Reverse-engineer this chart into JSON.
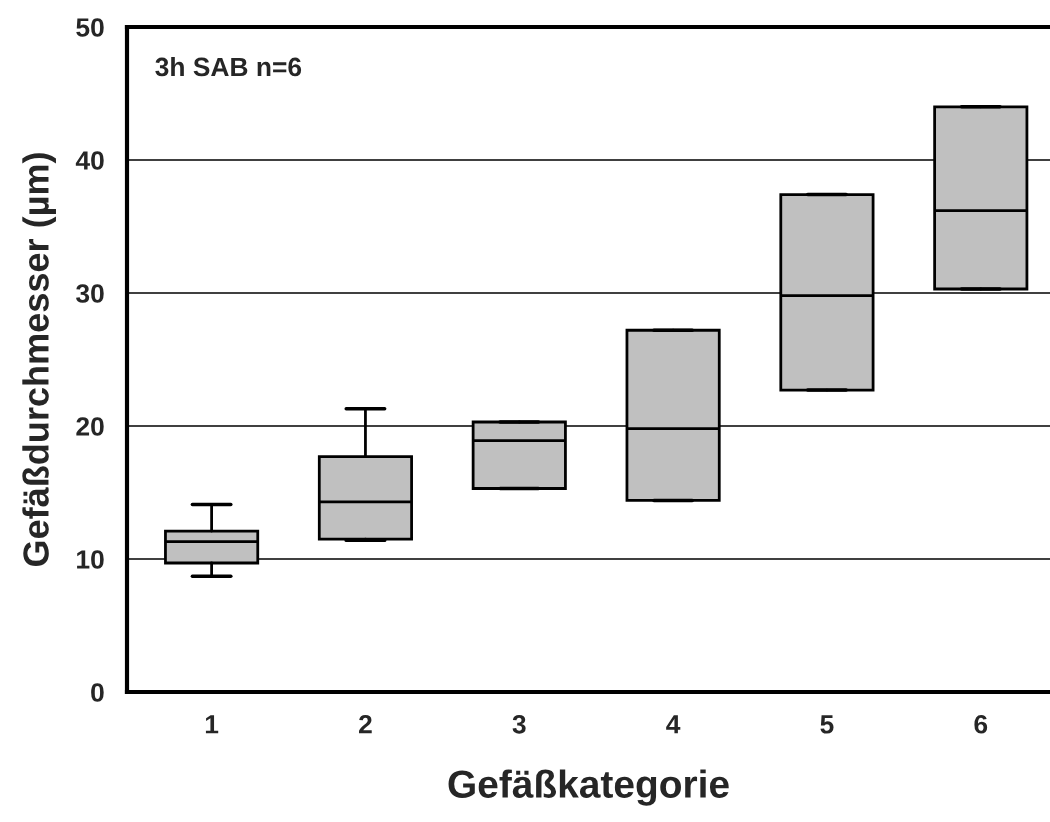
{
  "chart_data": {
    "type": "box",
    "xlabel": "Gefäßkategorie",
    "ylabel": "Gefäßdurchmesser (µm)",
    "annotations": [
      "3h SAB n=6"
    ],
    "categories": [
      "1",
      "2",
      "3",
      "4",
      "5",
      "6"
    ],
    "boxes": [
      {
        "low": 8.7,
        "q1": 9.7,
        "median": 11.3,
        "q3": 12.1,
        "high": 14.1
      },
      {
        "low": 11.4,
        "q1": 11.5,
        "median": 14.3,
        "q3": 17.7,
        "high": 21.3
      },
      {
        "low": 15.3,
        "q1": 15.3,
        "median": 18.9,
        "q3": 20.3,
        "high": 20.3
      },
      {
        "low": 14.4,
        "q1": 14.4,
        "median": 19.8,
        "q3": 27.2,
        "high": 27.2
      },
      {
        "low": 22.7,
        "q1": 22.7,
        "median": 29.8,
        "q3": 37.4,
        "high": 37.4
      },
      {
        "low": 30.3,
        "q1": 30.3,
        "median": 36.2,
        "q3": 44.0,
        "high": 44.0
      }
    ],
    "color": "#c0c0c0",
    "ylim": [
      0,
      50
    ],
    "yticks": [
      0,
      10,
      20,
      30,
      40,
      50
    ],
    "grid": "y"
  }
}
